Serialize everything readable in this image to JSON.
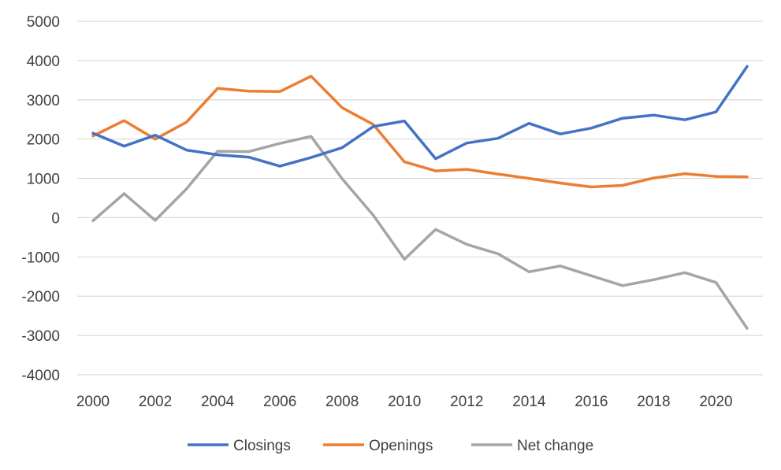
{
  "chart_data": {
    "type": "line",
    "title": "",
    "xlabel": "",
    "ylabel": "",
    "x": [
      2000,
      2001,
      2002,
      2003,
      2004,
      2005,
      2006,
      2007,
      2008,
      2009,
      2010,
      2011,
      2012,
      2013,
      2014,
      2015,
      2016,
      2017,
      2018,
      2019,
      2020,
      2021
    ],
    "ylim": [
      -4000,
      5000
    ],
    "yticks": [
      "5000",
      "4000",
      "3000",
      "2000",
      "1000",
      "0",
      "-1000",
      "-2000",
      "-3000",
      "-4000"
    ],
    "xticks": [
      "2000",
      "2002",
      "2004",
      "2006",
      "2008",
      "2010",
      "2012",
      "2014",
      "2016",
      "2018",
      "2020"
    ],
    "grid": "horizontal",
    "legend_position": "bottom",
    "series": [
      {
        "name": "Closings",
        "color": "#4472C4",
        "values": [
          2150,
          1820,
          2100,
          1720,
          1600,
          1540,
          1310,
          1530,
          1780,
          2320,
          2460,
          1500,
          1900,
          2020,
          2400,
          2130,
          2280,
          2530,
          2610,
          2490,
          2690,
          3850
        ]
      },
      {
        "name": "Openings",
        "color": "#ED7D31",
        "values": [
          2080,
          2470,
          2000,
          2430,
          3290,
          3220,
          3210,
          3600,
          2800,
          2370,
          1420,
          1190,
          1230,
          1110,
          1000,
          880,
          780,
          820,
          1010,
          1120,
          1050,
          1040
        ]
      },
      {
        "name": "Net change",
        "color": "#A5A5A5",
        "values": [
          -80,
          610,
          -70,
          730,
          1690,
          1680,
          1890,
          2070,
          990,
          60,
          -1060,
          -300,
          -680,
          -920,
          -1380,
          -1230,
          -1480,
          -1730,
          -1580,
          -1400,
          -1650,
          -2820
        ]
      }
    ]
  }
}
